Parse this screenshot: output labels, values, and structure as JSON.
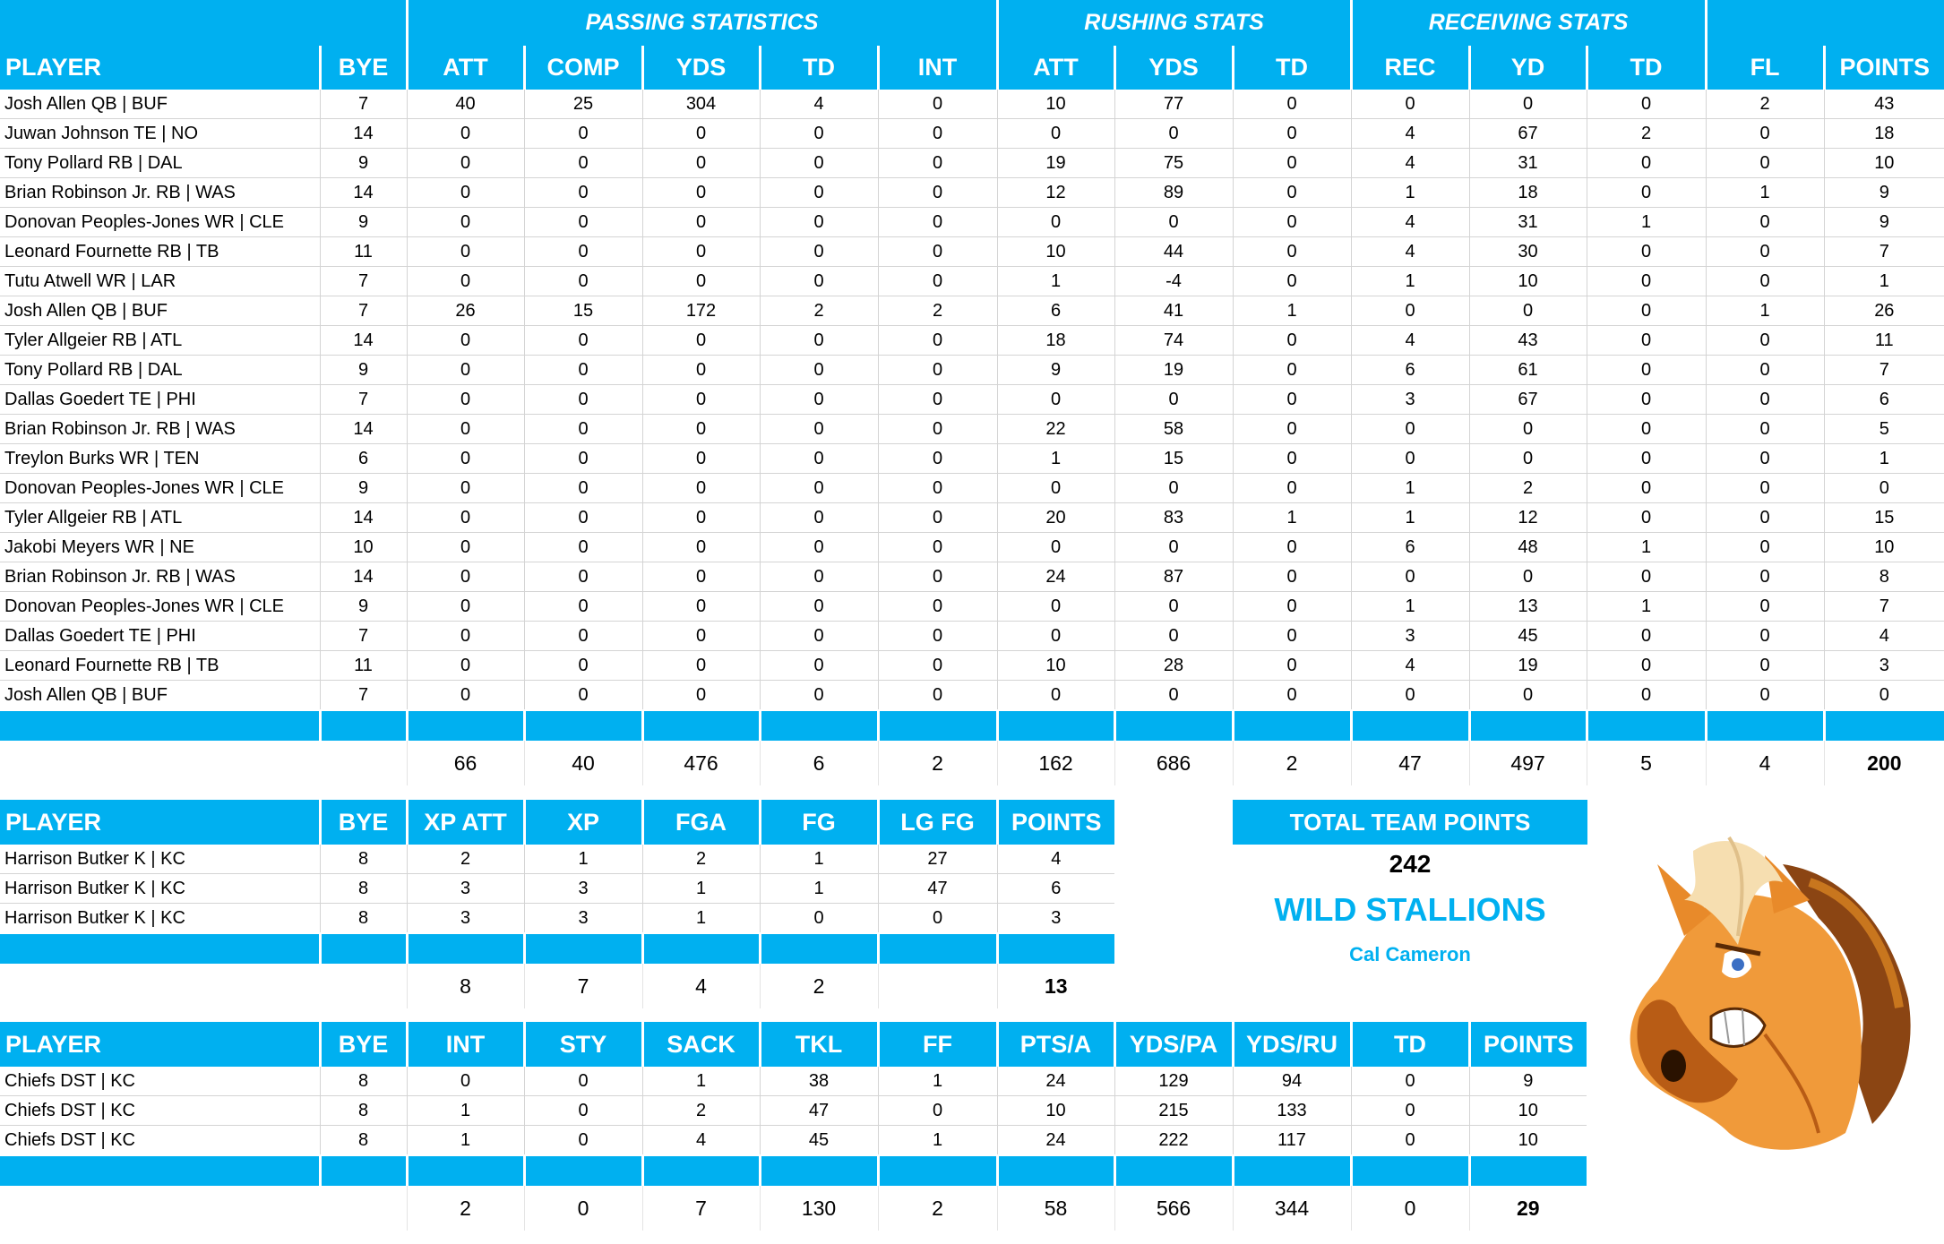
{
  "main_table": {
    "group_headers": {
      "passing": "PASSING STATISTICS",
      "rushing": "RUSHING STATS",
      "receiving": "RECEIVING STATS"
    },
    "columns": [
      "PLAYER",
      "BYE",
      "ATT",
      "COMP",
      "YDS",
      "TD",
      "INT",
      "ATT",
      "YDS",
      "TD",
      "REC",
      "YD",
      "TD",
      "FL",
      "POINTS"
    ],
    "rows": [
      [
        "Josh Allen QB | BUF",
        "7",
        "40",
        "25",
        "304",
        "4",
        "0",
        "10",
        "77",
        "0",
        "0",
        "0",
        "0",
        "2",
        "43"
      ],
      [
        "Juwan Johnson TE | NO",
        "14",
        "0",
        "0",
        "0",
        "0",
        "0",
        "0",
        "0",
        "0",
        "4",
        "67",
        "2",
        "0",
        "18"
      ],
      [
        "Tony Pollard RB | DAL",
        "9",
        "0",
        "0",
        "0",
        "0",
        "0",
        "19",
        "75",
        "0",
        "4",
        "31",
        "0",
        "0",
        "10"
      ],
      [
        "Brian Robinson Jr. RB | WAS",
        "14",
        "0",
        "0",
        "0",
        "0",
        "0",
        "12",
        "89",
        "0",
        "1",
        "18",
        "0",
        "1",
        "9"
      ],
      [
        "Donovan Peoples-Jones WR | CLE",
        "9",
        "0",
        "0",
        "0",
        "0",
        "0",
        "0",
        "0",
        "0",
        "4",
        "31",
        "1",
        "0",
        "9"
      ],
      [
        "Leonard Fournette RB | TB",
        "11",
        "0",
        "0",
        "0",
        "0",
        "0",
        "10",
        "44",
        "0",
        "4",
        "30",
        "0",
        "0",
        "7"
      ],
      [
        "Tutu Atwell WR | LAR",
        "7",
        "0",
        "0",
        "0",
        "0",
        "0",
        "1",
        "-4",
        "0",
        "1",
        "10",
        "0",
        "0",
        "1"
      ],
      [
        "Josh Allen QB | BUF",
        "7",
        "26",
        "15",
        "172",
        "2",
        "2",
        "6",
        "41",
        "1",
        "0",
        "0",
        "0",
        "1",
        "26"
      ],
      [
        "Tyler Allgeier RB | ATL",
        "14",
        "0",
        "0",
        "0",
        "0",
        "0",
        "18",
        "74",
        "0",
        "4",
        "43",
        "0",
        "0",
        "11"
      ],
      [
        "Tony Pollard RB | DAL",
        "9",
        "0",
        "0",
        "0",
        "0",
        "0",
        "9",
        "19",
        "0",
        "6",
        "61",
        "0",
        "0",
        "7"
      ],
      [
        "Dallas Goedert TE | PHI",
        "7",
        "0",
        "0",
        "0",
        "0",
        "0",
        "0",
        "0",
        "0",
        "3",
        "67",
        "0",
        "0",
        "6"
      ],
      [
        "Brian Robinson Jr. RB | WAS",
        "14",
        "0",
        "0",
        "0",
        "0",
        "0",
        "22",
        "58",
        "0",
        "0",
        "0",
        "0",
        "0",
        "5"
      ],
      [
        "Treylon Burks WR | TEN",
        "6",
        "0",
        "0",
        "0",
        "0",
        "0",
        "1",
        "15",
        "0",
        "0",
        "0",
        "0",
        "0",
        "1"
      ],
      [
        "Donovan Peoples-Jones WR | CLE",
        "9",
        "0",
        "0",
        "0",
        "0",
        "0",
        "0",
        "0",
        "0",
        "1",
        "2",
        "0",
        "0",
        "0"
      ],
      [
        "Tyler Allgeier RB | ATL",
        "14",
        "0",
        "0",
        "0",
        "0",
        "0",
        "20",
        "83",
        "1",
        "1",
        "12",
        "0",
        "0",
        "15"
      ],
      [
        "Jakobi Meyers WR | NE",
        "10",
        "0",
        "0",
        "0",
        "0",
        "0",
        "0",
        "0",
        "0",
        "6",
        "48",
        "1",
        "0",
        "10"
      ],
      [
        "Brian Robinson Jr. RB | WAS",
        "14",
        "0",
        "0",
        "0",
        "0",
        "0",
        "24",
        "87",
        "0",
        "0",
        "0",
        "0",
        "0",
        "8"
      ],
      [
        "Donovan Peoples-Jones WR | CLE",
        "9",
        "0",
        "0",
        "0",
        "0",
        "0",
        "0",
        "0",
        "0",
        "1",
        "13",
        "1",
        "0",
        "7"
      ],
      [
        "Dallas Goedert TE | PHI",
        "7",
        "0",
        "0",
        "0",
        "0",
        "0",
        "0",
        "0",
        "0",
        "3",
        "45",
        "0",
        "0",
        "4"
      ],
      [
        "Leonard Fournette RB | TB",
        "11",
        "0",
        "0",
        "0",
        "0",
        "0",
        "10",
        "28",
        "0",
        "4",
        "19",
        "0",
        "0",
        "3"
      ],
      [
        "Josh Allen QB | BUF",
        "7",
        "0",
        "0",
        "0",
        "0",
        "0",
        "0",
        "0",
        "0",
        "0",
        "0",
        "0",
        "0",
        "0"
      ]
    ],
    "totals": [
      "",
      "",
      "66",
      "40",
      "476",
      "6",
      "2",
      "162",
      "686",
      "2",
      "47",
      "497",
      "5",
      "4",
      "200"
    ]
  },
  "kicker_table": {
    "columns": [
      "PLAYER",
      "BYE",
      "XP ATT",
      "XP",
      "FGA",
      "FG",
      "LG FG",
      "POINTS"
    ],
    "rows": [
      [
        "Harrison Butker K | KC",
        "8",
        "2",
        "1",
        "2",
        "1",
        "27",
        "4"
      ],
      [
        "Harrison Butker K | KC",
        "8",
        "3",
        "3",
        "1",
        "1",
        "47",
        "6"
      ],
      [
        "Harrison Butker K | KC",
        "8",
        "3",
        "3",
        "1",
        "0",
        "0",
        "3"
      ]
    ],
    "totals": [
      "",
      "",
      "8",
      "7",
      "4",
      "2",
      "",
      "13"
    ]
  },
  "defense_table": {
    "columns": [
      "PLAYER",
      "BYE",
      "INT",
      "STY",
      "SACK",
      "TKL",
      "FF",
      "PTS/A",
      "YDS/PA",
      "YDS/RU",
      "TD",
      "POINTS"
    ],
    "rows": [
      [
        "Chiefs DST | KC",
        "8",
        "0",
        "0",
        "1",
        "38",
        "1",
        "24",
        "129",
        "94",
        "0",
        "9"
      ],
      [
        "Chiefs DST | KC",
        "8",
        "1",
        "0",
        "2",
        "47",
        "0",
        "10",
        "215",
        "133",
        "0",
        "10"
      ],
      [
        "Chiefs DST | KC",
        "8",
        "1",
        "0",
        "4",
        "45",
        "1",
        "24",
        "222",
        "117",
        "0",
        "10"
      ]
    ],
    "totals": [
      "",
      "",
      "2",
      "0",
      "7",
      "130",
      "2",
      "58",
      "566",
      "344",
      "0",
      "29"
    ]
  },
  "team_panel": {
    "total_label": "TOTAL TEAM POINTS",
    "total_value": "242",
    "team_name": "WILD STALLIONS",
    "owner": "Cal Cameron",
    "logo_icon": "stallion-mascot-icon"
  },
  "colors": {
    "accent": "#00b0f0",
    "header_text": "#ffffff",
    "grid_line": "#d4d4d4"
  }
}
